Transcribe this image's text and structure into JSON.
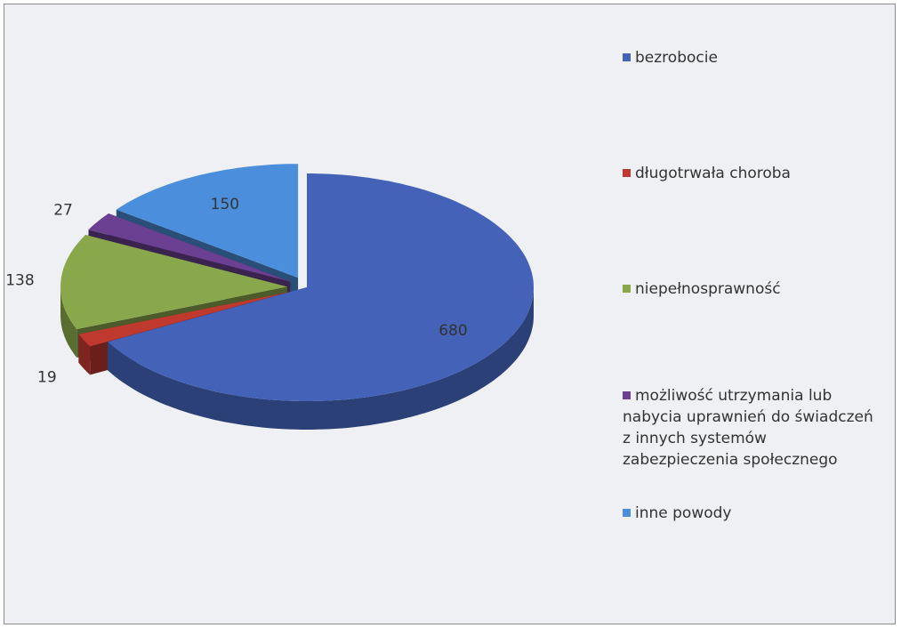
{
  "chart_data": {
    "type": "pie3d",
    "categories": [
      "bezrobocie",
      "długotrwała choroba",
      "niepełnosprawność",
      "możliwość utrzymania lub nabycia uprawnień do świadczeń z innych systemów zabezpieczenia społecznego",
      "inne powody"
    ],
    "values": [
      680,
      19,
      138,
      27,
      150
    ],
    "colors": [
      "#4462b8",
      "#c0392f",
      "#89a84c",
      "#6b3f92",
      "#4b8fdc"
    ],
    "legend": "right"
  }
}
